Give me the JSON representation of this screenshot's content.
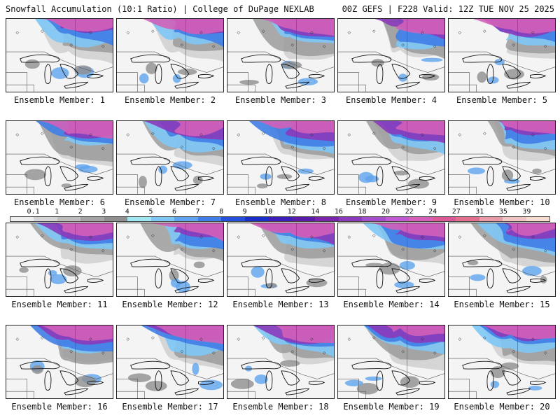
{
  "header": {
    "left_title": "Snowfall Accumulation (10:1 Ratio) | College of DuPage NEXLAB",
    "right_title": "00Z GEFS | F228 Valid: 12Z TUE NOV 25 2025"
  },
  "panels": [
    {
      "label": "Ensemble Member: 1"
    },
    {
      "label": "Ensemble Member: 2"
    },
    {
      "label": "Ensemble Member: 3"
    },
    {
      "label": "Ensemble Member: 4"
    },
    {
      "label": "Ensemble Member: 5"
    },
    {
      "label": "Ensemble Member: 6"
    },
    {
      "label": "Ensemble Member: 7"
    },
    {
      "label": "Ensemble Member: 8"
    },
    {
      "label": "Ensemble Member: 9"
    },
    {
      "label": "Ensemble Member: 10"
    },
    {
      "label": "Ensemble Member: 11"
    },
    {
      "label": "Ensemble Member: 12"
    },
    {
      "label": "Ensemble Member: 13"
    },
    {
      "label": "Ensemble Member: 14"
    },
    {
      "label": "Ensemble Member: 15"
    },
    {
      "label": "Ensemble Member: 16"
    },
    {
      "label": "Ensemble Member: 17"
    },
    {
      "label": "Ensemble Member: 18"
    },
    {
      "label": "Ensemble Member: 19"
    },
    {
      "label": "Ensemble Member: 20"
    }
  ],
  "color_scale": {
    "ticks": [
      "0.1",
      "1",
      "2",
      "3",
      "4",
      "5",
      "6",
      "7",
      "8",
      "9",
      "10",
      "12",
      "14",
      "16",
      "18",
      "20",
      "22",
      "24",
      "27",
      "31",
      "35",
      "39"
    ],
    "colors": [
      "#eeeeee",
      "#d4d4d4",
      "#bdbdbd",
      "#a4a4a4",
      "#8f8f8f",
      "#9fe8f2",
      "#7ec8f5",
      "#5ea4ee",
      "#3f7ee6",
      "#2450dc",
      "#1a2fc8",
      "#3c1fb8",
      "#5a1ba8",
      "#7a24a8",
      "#8a3aba",
      "#a64dc8",
      "#c05ad0",
      "#d260b8",
      "#da5a98",
      "#e0708e",
      "#e89aa6",
      "#f0c4c0",
      "#f6ddd0"
    ]
  }
}
